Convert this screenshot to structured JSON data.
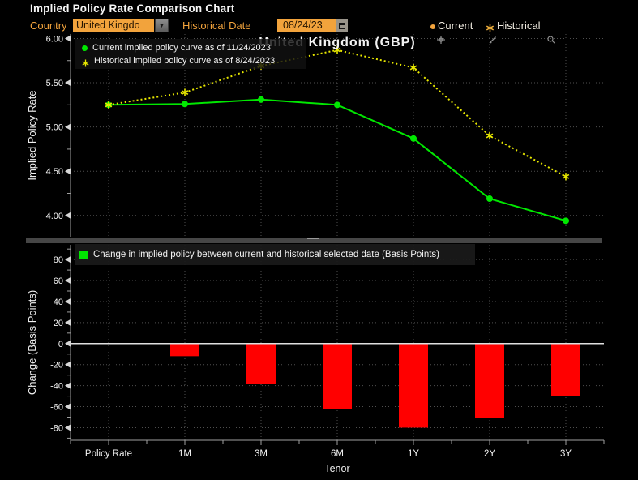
{
  "window": {
    "title": "Implied Policy Rate Comparison Chart"
  },
  "controls": {
    "country_label": "Country",
    "country_value": "United Kingdo",
    "historical_date_label": "Historical Date",
    "historical_date_value": "08/24/23"
  },
  "series_toggle": {
    "current_label": "Current",
    "historical_label": "Historical"
  },
  "toolbar": {
    "track_label": "Track",
    "annotate_label": "Annotate",
    "zoom_label": "Zoom"
  },
  "colors": {
    "amber": "#f2a33c",
    "current_green": "#00e800",
    "historical_yellow": "#ededed00",
    "yellow": "#e8e800",
    "bar_red": "#ff0000",
    "grid": "#4f4f4f",
    "axis": "#9f9f9f",
    "tick_text": "#f5f5f5",
    "zero_line": "#e0e0e0"
  },
  "chart_data": [
    {
      "type": "line",
      "title": "United Kingdom (GBP)",
      "ylabel": "Implied Policy Rate",
      "categories": [
        "Policy Rate",
        "1M",
        "3M",
        "6M",
        "1Y",
        "2Y",
        "3Y"
      ],
      "ylim": [
        3.76,
        6.05
      ],
      "yticks": [
        6.0,
        5.5,
        5.0,
        4.5,
        4.0
      ],
      "ytick_labels": [
        "6.00",
        "5.50",
        "5.00",
        "4.50",
        "4.00"
      ],
      "grid": true,
      "legend_position": "top-left",
      "series": [
        {
          "name": "Current implied policy curve as of 11/24/2023",
          "color": "#00e800",
          "line_style": "solid",
          "marker": "circle",
          "values": [
            5.25,
            5.26,
            5.31,
            5.25,
            4.87,
            4.19,
            3.94
          ]
        },
        {
          "name": "Historical implied policy curve as of 8/24/2023",
          "color": "#e8e800",
          "line_style": "dotted",
          "marker": "asterisk",
          "values": [
            5.25,
            5.39,
            5.69,
            5.87,
            5.67,
            4.9,
            4.44
          ]
        }
      ]
    },
    {
      "type": "bar",
      "legend": "Change in implied policy between current and historical selected date (Basis Points)",
      "ylabel": "Change (Basis Points)",
      "xlabel": "Tenor",
      "categories": [
        "Policy Rate",
        "1M",
        "3M",
        "6M",
        "1Y",
        "2Y",
        "3Y"
      ],
      "values": [
        0,
        -12,
        -38,
        -62,
        -80,
        -71,
        -50
      ],
      "ylim": [
        -92,
        94
      ],
      "yticks": [
        80,
        60,
        40,
        20,
        0,
        -20,
        -40,
        -60,
        -80
      ],
      "ytick_labels": [
        "80",
        "60",
        "40",
        "20",
        "0",
        "-20",
        "-40",
        "-60",
        "-80"
      ],
      "bar_color": "#ff0000",
      "grid": true
    }
  ]
}
